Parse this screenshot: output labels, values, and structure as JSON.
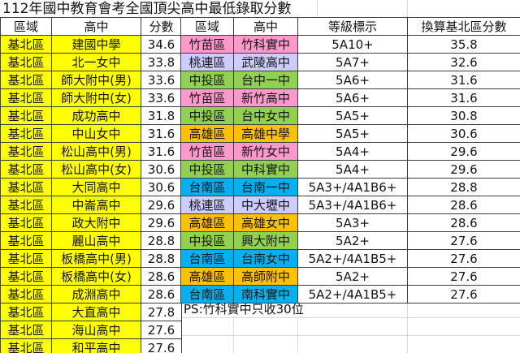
{
  "title": "112年國中教育會考全國頂尖高中最低錄取分數",
  "ps_note": "PS:竹科實中只收30位",
  "colors": {
    "yellow": "#FFFF00",
    "pink": "#FF99CC",
    "lavender": "#CCCCFF",
    "green": "#92D050",
    "orange": "#FFC000",
    "blue": "#00B0F0",
    "cell_border": "#3F3F3F",
    "faint_grid": "#D9D9D9"
  },
  "chart_data": [
    {
      "type": "table",
      "name": "taipei-keelung-region-schools",
      "columns": [
        "區域",
        "高中",
        "分數"
      ],
      "row_color_all": "yellow",
      "rows": [
        [
          "基北區",
          "建國中學",
          "34.6"
        ],
        [
          "基北區",
          "北一女中",
          "33.8"
        ],
        [
          "基北區",
          "師大附中(男)",
          "33.6"
        ],
        [
          "基北區",
          "師大附中(女)",
          "33.6"
        ],
        [
          "基北區",
          "成功高中",
          "31.8"
        ],
        [
          "基北區",
          "中山女中",
          "31.6"
        ],
        [
          "基北區",
          "松山高中(男)",
          "31.6"
        ],
        [
          "基北區",
          "松山高中(女)",
          "30.6"
        ],
        [
          "基北區",
          "大同高中",
          "30.6"
        ],
        [
          "基北區",
          "中崙高中",
          "29.6"
        ],
        [
          "基北區",
          "政大附中",
          "29.6"
        ],
        [
          "基北區",
          "麗山高中",
          "28.8"
        ],
        [
          "基北區",
          "板橋高中(男)",
          "28.8"
        ],
        [
          "基北區",
          "板橋高中(女)",
          "28.6"
        ],
        [
          "基北區",
          "成淵高中",
          "28.6"
        ],
        [
          "基北區",
          "大直高中",
          "27.8"
        ],
        [
          "基北區",
          "海山高中",
          "27.6"
        ],
        [
          "基北區",
          "和平高中",
          "27.6"
        ]
      ]
    },
    {
      "type": "table",
      "name": "other-regions-schools",
      "columns": [
        "區域",
        "高中",
        "等級標示",
        "換算基北區分數"
      ],
      "row_colors": [
        "pink",
        "lavender",
        "green",
        "pink",
        "green",
        "orange",
        "pink",
        "green",
        "blue",
        "lavender",
        "orange",
        "green",
        "blue",
        "orange",
        "blue"
      ],
      "rows": [
        [
          "竹苗區",
          "竹科實中",
          "5A10+",
          "35.8"
        ],
        [
          "桃連區",
          "武陵高中",
          "5A7+",
          "32.6"
        ],
        [
          "中投區",
          "台中一中",
          "5A6+",
          "31.6"
        ],
        [
          "竹苗區",
          "新竹高中",
          "5A6+",
          "31.6"
        ],
        [
          "中投區",
          "台中女中",
          "5A5+",
          "30.8"
        ],
        [
          "高雄區",
          "高雄中學",
          "5A5+",
          "30.6"
        ],
        [
          "竹苗區",
          "新竹女中",
          "5A4+",
          "29.6"
        ],
        [
          "中投區",
          "中科實中",
          "5A4+",
          "29.6"
        ],
        [
          "台南區",
          "台南一中",
          "5A3+/4A1B6+",
          "28.8"
        ],
        [
          "桃連區",
          "中大壢中",
          "5A3+/4A1B6+",
          "28.6"
        ],
        [
          "高雄區",
          "高雄女中",
          "5A3+",
          "28.6"
        ],
        [
          "中投區",
          "興大附中",
          "5A2+",
          "27.6"
        ],
        [
          "台南區",
          "台南女中",
          "5A2+/4A1B5+",
          "27.6"
        ],
        [
          "高雄區",
          "高師附中",
          "5A2+",
          "27.6"
        ],
        [
          "台南區",
          "南科實中",
          "5A2+/4A1B5+",
          "27.6"
        ]
      ]
    }
  ]
}
